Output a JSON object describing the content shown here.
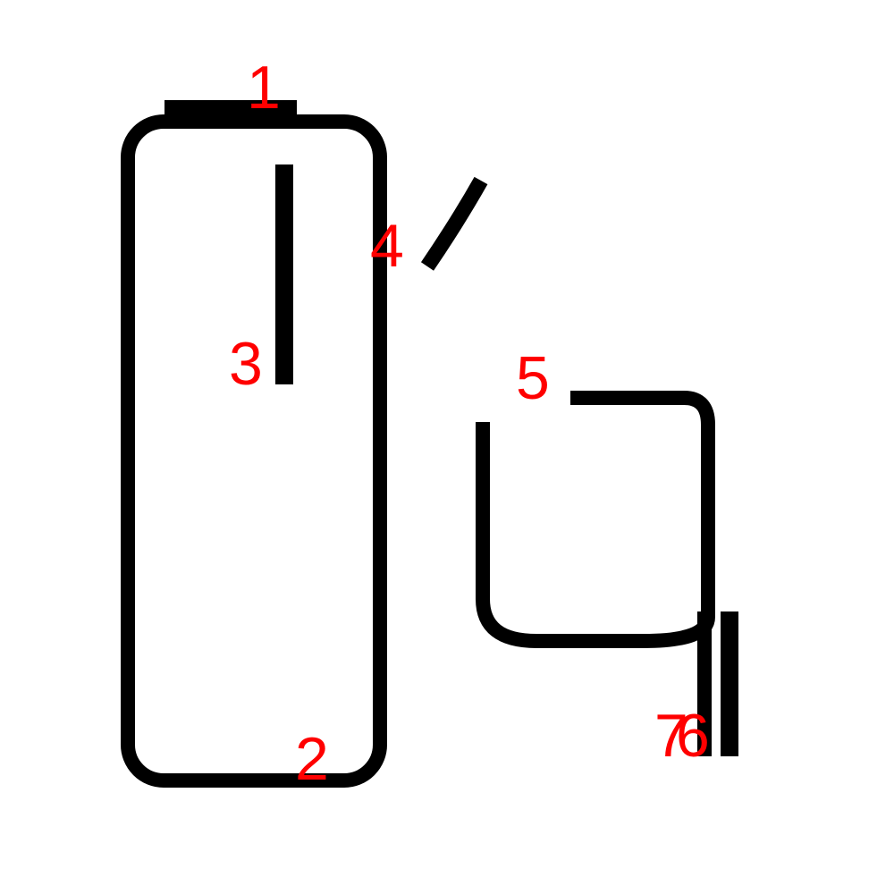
{
  "colors": {
    "background": "#ffffff",
    "stroke": "#000000",
    "label": "#ff0000"
  },
  "labels": {
    "l1": "1",
    "l2": "2",
    "l3": "3",
    "l4": "4",
    "l5": "5",
    "l6": "6",
    "l7": "7"
  }
}
